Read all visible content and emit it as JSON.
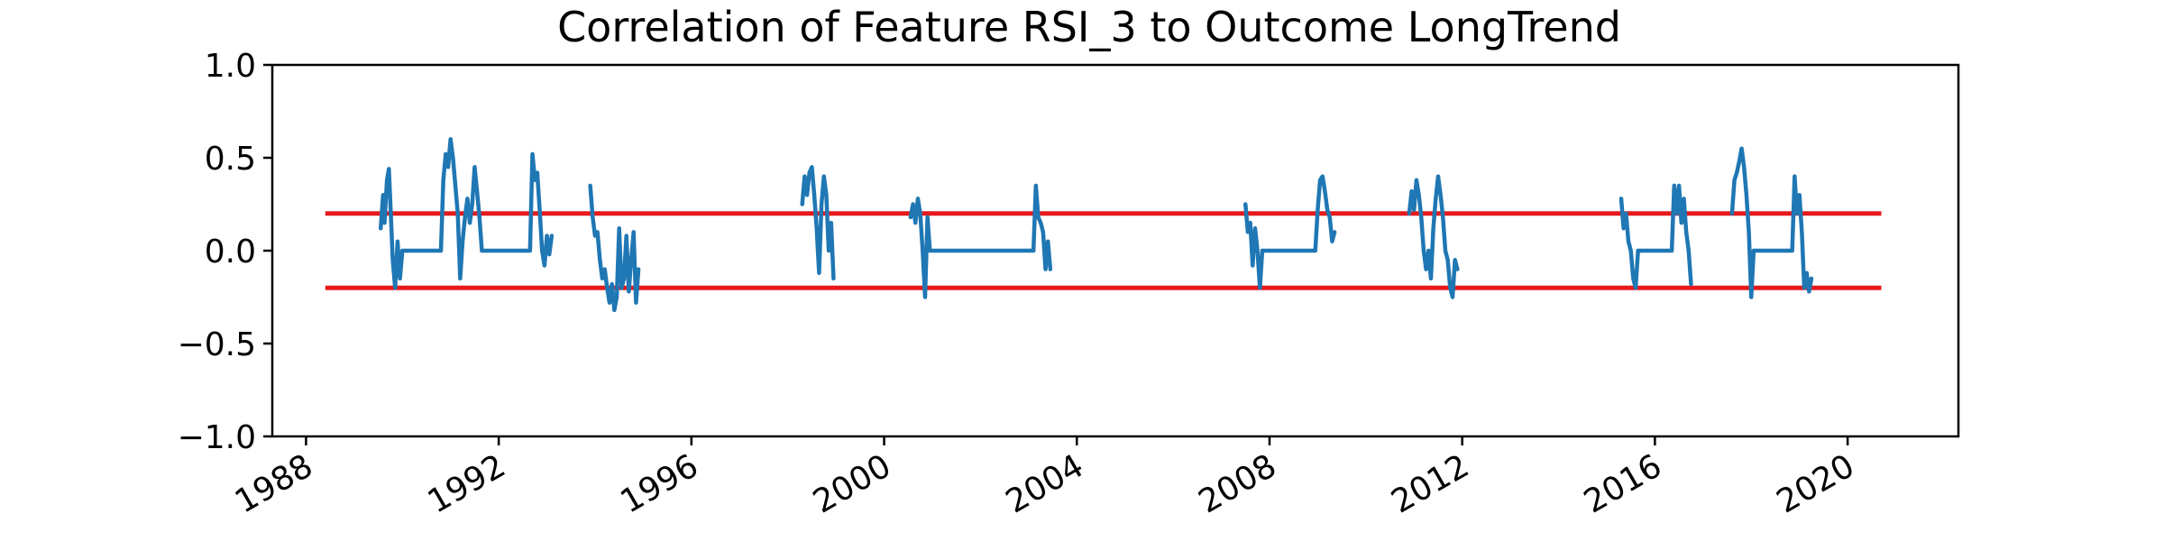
{
  "chart_data": {
    "type": "line",
    "title": "Correlation of Feature RSI_3 to Outcome LongTrend",
    "xlabel": "",
    "ylabel": "",
    "xlim": [
      1987.3,
      2022.3
    ],
    "ylim": [
      -1.0,
      1.0
    ],
    "grid": false,
    "legend": "none",
    "y_ticks": [
      -1.0,
      -0.5,
      0.0,
      0.5,
      1.0
    ],
    "y_tick_labels": [
      "−1.0",
      "−0.5",
      "0.0",
      "0.5",
      "1.0"
    ],
    "x_ticks": [
      1988,
      1992,
      1996,
      2000,
      2004,
      2008,
      2012,
      2016,
      2020
    ],
    "x_tick_labels": [
      "1988",
      "1992",
      "1996",
      "2000",
      "2004",
      "2008",
      "2012",
      "2016",
      "2020"
    ],
    "thresholds": [
      {
        "y": 0.2,
        "x": [
          1988.4,
          2020.7
        ],
        "color": "#e41a1c"
      },
      {
        "y": -0.2,
        "x": [
          1988.4,
          2020.7
        ],
        "color": "#e41a1c"
      }
    ],
    "series": [
      {
        "color": "#1f77b4",
        "segments": [
          [
            [
              1989.55,
              0.12
            ],
            [
              1989.6,
              0.3
            ],
            [
              1989.63,
              0.15
            ],
            [
              1989.68,
              0.38
            ],
            [
              1989.72,
              0.44
            ],
            [
              1989.76,
              0.2
            ],
            [
              1989.8,
              -0.05
            ],
            [
              1989.85,
              -0.2
            ],
            [
              1989.9,
              0.05
            ],
            [
              1989.95,
              -0.15
            ],
            [
              1990.0,
              0.0
            ],
            [
              1990.2,
              0.0
            ],
            [
              1990.5,
              0.0
            ],
            [
              1990.8,
              0.0
            ],
            [
              1990.85,
              0.38
            ],
            [
              1990.9,
              0.52
            ],
            [
              1990.95,
              0.45
            ],
            [
              1991.0,
              0.6
            ],
            [
              1991.05,
              0.5
            ],
            [
              1991.1,
              0.35
            ],
            [
              1991.15,
              0.2
            ],
            [
              1991.2,
              -0.15
            ],
            [
              1991.25,
              0.05
            ],
            [
              1991.3,
              0.18
            ],
            [
              1991.35,
              0.28
            ],
            [
              1991.4,
              0.15
            ],
            [
              1991.45,
              0.25
            ],
            [
              1991.5,
              0.45
            ],
            [
              1991.55,
              0.32
            ],
            [
              1991.6,
              0.18
            ],
            [
              1991.65,
              0.0
            ],
            [
              1992.0,
              0.0
            ],
            [
              1992.3,
              0.0
            ],
            [
              1992.65,
              0.0
            ],
            [
              1992.7,
              0.52
            ],
            [
              1992.75,
              0.38
            ],
            [
              1992.8,
              0.42
            ],
            [
              1992.85,
              0.22
            ],
            [
              1992.9,
              0.0
            ],
            [
              1992.95,
              -0.08
            ],
            [
              1993.0,
              0.08
            ],
            [
              1993.05,
              -0.02
            ],
            [
              1993.1,
              0.08
            ]
          ],
          [
            [
              1993.9,
              0.35
            ],
            [
              1993.95,
              0.18
            ],
            [
              1994.0,
              0.08
            ],
            [
              1994.05,
              0.1
            ],
            [
              1994.1,
              -0.05
            ],
            [
              1994.15,
              -0.15
            ],
            [
              1994.2,
              -0.1
            ],
            [
              1994.25,
              -0.2
            ],
            [
              1994.3,
              -0.28
            ],
            [
              1994.35,
              -0.18
            ],
            [
              1994.4,
              -0.32
            ],
            [
              1994.45,
              -0.25
            ],
            [
              1994.5,
              0.12
            ],
            [
              1994.55,
              -0.2
            ],
            [
              1994.6,
              -0.15
            ],
            [
              1994.65,
              0.08
            ],
            [
              1994.7,
              -0.22
            ],
            [
              1994.75,
              -0.05
            ],
            [
              1994.8,
              0.1
            ],
            [
              1994.85,
              -0.28
            ],
            [
              1994.9,
              -0.1
            ]
          ],
          [
            [
              1998.3,
              0.25
            ],
            [
              1998.35,
              0.4
            ],
            [
              1998.4,
              0.3
            ],
            [
              1998.45,
              0.42
            ],
            [
              1998.5,
              0.45
            ],
            [
              1998.55,
              0.3
            ],
            [
              1998.6,
              0.12
            ],
            [
              1998.65,
              -0.12
            ],
            [
              1998.7,
              0.25
            ],
            [
              1998.75,
              0.4
            ],
            [
              1998.8,
              0.3
            ],
            [
              1998.85,
              0.0
            ],
            [
              1998.9,
              0.15
            ],
            [
              1998.95,
              -0.15
            ]
          ],
          [
            [
              2000.55,
              0.18
            ],
            [
              2000.6,
              0.25
            ],
            [
              2000.65,
              0.15
            ],
            [
              2000.7,
              0.28
            ],
            [
              2000.75,
              0.2
            ],
            [
              2000.8,
              0.0
            ],
            [
              2000.85,
              -0.25
            ],
            [
              2000.9,
              0.18
            ],
            [
              2000.95,
              0.0
            ],
            [
              2001.5,
              0.0
            ],
            [
              2002.0,
              0.0
            ],
            [
              2002.5,
              0.0
            ],
            [
              2003.0,
              0.0
            ],
            [
              2003.1,
              0.0
            ],
            [
              2003.15,
              0.35
            ],
            [
              2003.2,
              0.18
            ],
            [
              2003.25,
              0.15
            ],
            [
              2003.3,
              0.1
            ],
            [
              2003.35,
              -0.1
            ],
            [
              2003.4,
              0.05
            ],
            [
              2003.45,
              -0.1
            ]
          ],
          [
            [
              2007.5,
              0.25
            ],
            [
              2007.55,
              0.1
            ],
            [
              2007.6,
              0.15
            ],
            [
              2007.65,
              -0.08
            ],
            [
              2007.7,
              0.12
            ],
            [
              2007.75,
              0.0
            ],
            [
              2007.8,
              -0.2
            ],
            [
              2007.85,
              0.0
            ],
            [
              2008.5,
              0.0
            ],
            [
              2008.95,
              0.0
            ],
            [
              2009.0,
              0.22
            ],
            [
              2009.05,
              0.38
            ],
            [
              2009.1,
              0.4
            ],
            [
              2009.15,
              0.32
            ],
            [
              2009.2,
              0.22
            ],
            [
              2009.25,
              0.18
            ],
            [
              2009.3,
              0.05
            ],
            [
              2009.35,
              0.1
            ]
          ],
          [
            [
              2010.9,
              0.2
            ],
            [
              2010.95,
              0.32
            ],
            [
              2011.0,
              0.22
            ],
            [
              2011.05,
              0.38
            ],
            [
              2011.1,
              0.3
            ],
            [
              2011.15,
              0.18
            ],
            [
              2011.2,
              0.0
            ],
            [
              2011.25,
              -0.1
            ],
            [
              2011.3,
              0.0
            ],
            [
              2011.35,
              -0.15
            ],
            [
              2011.4,
              0.12
            ],
            [
              2011.45,
              0.28
            ],
            [
              2011.5,
              0.4
            ],
            [
              2011.55,
              0.3
            ],
            [
              2011.6,
              0.18
            ],
            [
              2011.65,
              0.0
            ],
            [
              2011.7,
              -0.05
            ],
            [
              2011.75,
              -0.2
            ],
            [
              2011.8,
              -0.25
            ],
            [
              2011.85,
              -0.05
            ],
            [
              2011.9,
              -0.1
            ]
          ],
          [
            [
              2015.3,
              0.28
            ],
            [
              2015.35,
              0.12
            ],
            [
              2015.4,
              0.2
            ],
            [
              2015.45,
              0.05
            ],
            [
              2015.5,
              0.0
            ],
            [
              2015.55,
              -0.15
            ],
            [
              2015.6,
              -0.2
            ],
            [
              2015.65,
              0.0
            ],
            [
              2016.0,
              0.0
            ],
            [
              2016.35,
              0.0
            ],
            [
              2016.4,
              0.35
            ],
            [
              2016.45,
              0.2
            ],
            [
              2016.5,
              0.35
            ],
            [
              2016.55,
              0.15
            ],
            [
              2016.6,
              0.28
            ],
            [
              2016.65,
              0.1
            ],
            [
              2016.7,
              0.0
            ],
            [
              2016.75,
              -0.18
            ]
          ],
          [
            [
              2017.6,
              0.2
            ],
            [
              2017.65,
              0.38
            ],
            [
              2017.7,
              0.42
            ],
            [
              2017.75,
              0.48
            ],
            [
              2017.8,
              0.55
            ],
            [
              2017.85,
              0.45
            ],
            [
              2017.9,
              0.3
            ],
            [
              2017.95,
              0.1
            ],
            [
              2018.0,
              -0.25
            ],
            [
              2018.05,
              0.0
            ],
            [
              2018.5,
              0.0
            ],
            [
              2018.85,
              0.0
            ],
            [
              2018.9,
              0.4
            ],
            [
              2018.95,
              0.2
            ],
            [
              2019.0,
              0.3
            ],
            [
              2019.05,
              0.1
            ],
            [
              2019.1,
              -0.2
            ],
            [
              2019.15,
              -0.12
            ],
            [
              2019.2,
              -0.22
            ],
            [
              2019.25,
              -0.15
            ]
          ]
        ]
      }
    ]
  }
}
